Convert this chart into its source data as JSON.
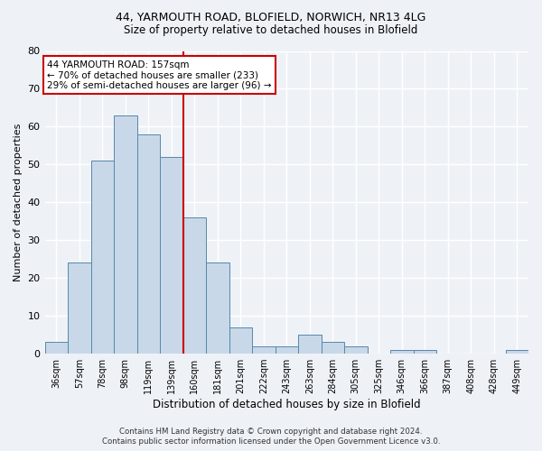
{
  "title_line1": "44, YARMOUTH ROAD, BLOFIELD, NORWICH, NR13 4LG",
  "title_line2": "Size of property relative to detached houses in Blofield",
  "xlabel": "Distribution of detached houses by size in Blofield",
  "ylabel": "Number of detached properties",
  "categories": [
    "36sqm",
    "57sqm",
    "78sqm",
    "98sqm",
    "119sqm",
    "139sqm",
    "160sqm",
    "181sqm",
    "201sqm",
    "222sqm",
    "243sqm",
    "263sqm",
    "284sqm",
    "305sqm",
    "325sqm",
    "346sqm",
    "366sqm",
    "387sqm",
    "408sqm",
    "428sqm",
    "449sqm"
  ],
  "values": [
    3,
    24,
    51,
    63,
    58,
    52,
    36,
    24,
    7,
    2,
    2,
    5,
    3,
    2,
    0,
    1,
    1,
    0,
    0,
    0,
    1
  ],
  "bar_color": "#c8d8e8",
  "bar_edge_color": "#5588aa",
  "vline_x": 5.5,
  "vline_color": "#cc0000",
  "ylim": [
    0,
    80
  ],
  "yticks": [
    0,
    10,
    20,
    30,
    40,
    50,
    60,
    70,
    80
  ],
  "annotation_line1": "44 YARMOUTH ROAD: 157sqm",
  "annotation_line2": "← 70% of detached houses are smaller (233)",
  "annotation_line3": "29% of semi-detached houses are larger (96) →",
  "annotation_box_color": "#ffffff",
  "annotation_box_edge": "#cc0000",
  "footer_line1": "Contains HM Land Registry data © Crown copyright and database right 2024.",
  "footer_line2": "Contains public sector information licensed under the Open Government Licence v3.0.",
  "background_color": "#eef2f7",
  "grid_color": "#ffffff",
  "title_fontsize": 9,
  "subtitle_fontsize": 8.5,
  "ylabel_fontsize": 8,
  "xlabel_fontsize": 8.5
}
